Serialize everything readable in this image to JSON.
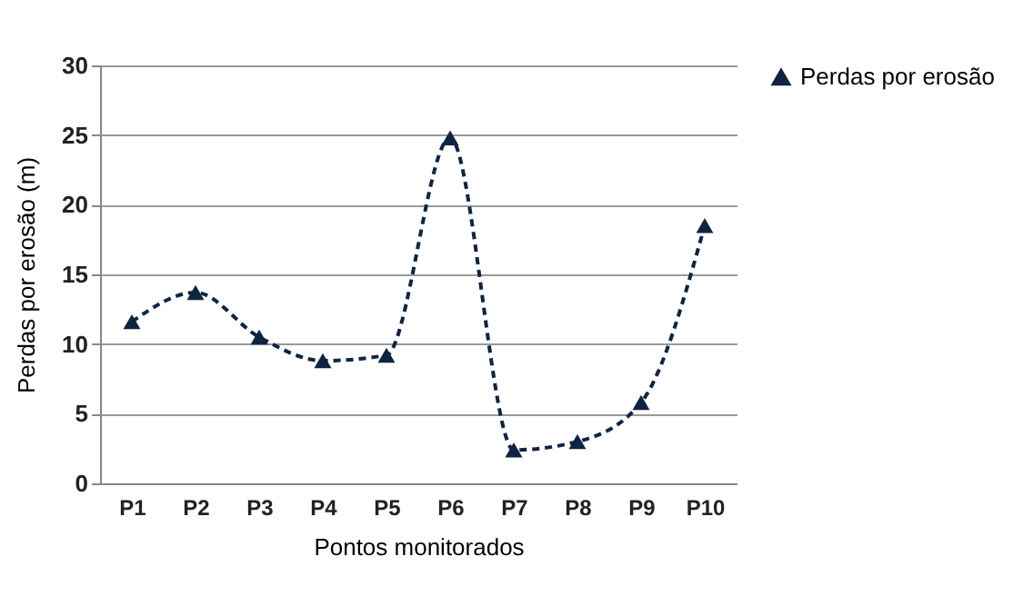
{
  "chart_data": {
    "type": "line",
    "xlabel": "Pontos monitorados",
    "ylabel": "Perdas por erosão (m)",
    "categories": [
      "P1",
      "P2",
      "P3",
      "P4",
      "P5",
      "P6",
      "P7",
      "P8",
      "P9",
      "P10"
    ],
    "series": [
      {
        "name": "Perdas por erosão",
        "color": "#0f2440",
        "values": [
          11.6,
          13.7,
          10.5,
          8.8,
          9.2,
          24.8,
          2.4,
          3.0,
          5.8,
          18.5
        ]
      }
    ],
    "ylim": [
      0,
      30
    ],
    "yticks": [
      0,
      5,
      10,
      15,
      20,
      25,
      30
    ],
    "grid": "y",
    "legend": "right",
    "marker": "triangle",
    "line_style": "dashed"
  }
}
